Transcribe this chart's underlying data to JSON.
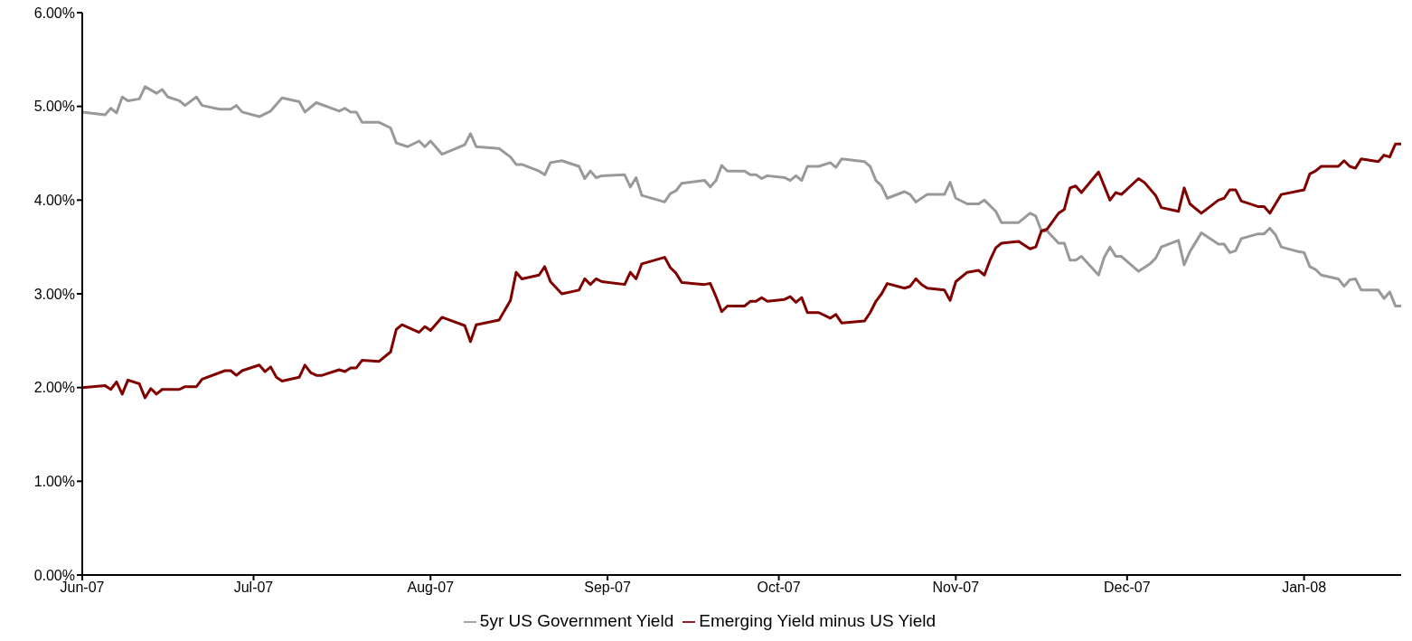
{
  "chart_data": {
    "type": "line",
    "xlim": [
      "2007-06-01",
      "2008-01-18"
    ],
    "xticks": [
      {
        "value": "2007-06-01",
        "label": "Jun-07"
      },
      {
        "value": "2007-07-01",
        "label": "Jul-07"
      },
      {
        "value": "2007-08-01",
        "label": "Aug-07"
      },
      {
        "value": "2007-09-01",
        "label": "Sep-07"
      },
      {
        "value": "2007-10-01",
        "label": "Oct-07"
      },
      {
        "value": "2007-11-01",
        "label": "Nov-07"
      },
      {
        "value": "2007-12-01",
        "label": "Dec-07"
      },
      {
        "value": "2008-01-01",
        "label": "Jan-08"
      }
    ],
    "ylim": [
      0,
      6
    ],
    "yticks": [
      {
        "value": 0,
        "label": "0.00%"
      },
      {
        "value": 1,
        "label": "1.00%"
      },
      {
        "value": 2,
        "label": "2.00%"
      },
      {
        "value": 3,
        "label": "3.00%"
      },
      {
        "value": 4,
        "label": "4.00%"
      },
      {
        "value": 5,
        "label": "5.00%"
      },
      {
        "value": 6,
        "label": "6.00%"
      }
    ],
    "grid": false,
    "legend": "bottom",
    "marker": "none",
    "line_style": "solid",
    "series": [
      {
        "name": "5yr US Government Yield",
        "color": "#999999",
        "x": [
          "2007-06-01",
          "2007-06-05",
          "2007-06-06",
          "2007-06-07",
          "2007-06-08",
          "2007-06-09",
          "2007-06-11",
          "2007-06-12",
          "2007-06-14",
          "2007-06-15",
          "2007-06-16",
          "2007-06-18",
          "2007-06-19",
          "2007-06-21",
          "2007-06-22",
          "2007-06-25",
          "2007-06-27",
          "2007-06-28",
          "2007-06-29",
          "2007-07-02",
          "2007-07-04",
          "2007-07-06",
          "2007-07-09",
          "2007-07-10",
          "2007-07-12",
          "2007-07-16",
          "2007-07-17",
          "2007-07-18",
          "2007-07-19",
          "2007-07-20",
          "2007-07-23",
          "2007-07-25",
          "2007-07-26",
          "2007-07-28",
          "2007-07-30",
          "2007-07-31",
          "2007-08-01",
          "2007-08-03",
          "2007-08-07",
          "2007-08-08",
          "2007-08-09",
          "2007-08-13",
          "2007-08-15",
          "2007-08-16",
          "2007-08-17",
          "2007-08-20",
          "2007-08-21",
          "2007-08-22",
          "2007-08-24",
          "2007-08-27",
          "2007-08-28",
          "2007-08-29",
          "2007-08-30",
          "2007-08-31",
          "2007-09-04",
          "2007-09-05",
          "2007-09-06",
          "2007-09-07",
          "2007-09-11",
          "2007-09-12",
          "2007-09-13",
          "2007-09-14",
          "2007-09-18",
          "2007-09-19",
          "2007-09-20",
          "2007-09-21",
          "2007-09-22",
          "2007-09-25",
          "2007-09-26",
          "2007-09-27",
          "2007-09-28",
          "2007-09-29",
          "2007-10-02",
          "2007-10-03",
          "2007-10-04",
          "2007-10-05",
          "2007-10-06",
          "2007-10-08",
          "2007-10-10",
          "2007-10-11",
          "2007-10-12",
          "2007-10-16",
          "2007-10-17",
          "2007-10-18",
          "2007-10-19",
          "2007-10-20",
          "2007-10-23",
          "2007-10-24",
          "2007-10-25",
          "2007-10-27",
          "2007-10-30",
          "2007-10-31",
          "2007-11-01",
          "2007-11-03",
          "2007-11-05",
          "2007-11-06",
          "2007-11-08",
          "2007-11-09",
          "2007-11-12",
          "2007-11-14",
          "2007-11-15",
          "2007-11-16",
          "2007-11-17",
          "2007-11-19",
          "2007-11-20",
          "2007-11-21",
          "2007-11-22",
          "2007-11-23",
          "2007-11-26",
          "2007-11-27",
          "2007-11-28",
          "2007-11-29",
          "2007-11-30",
          "2007-12-03",
          "2007-12-04",
          "2007-12-05",
          "2007-12-06",
          "2007-12-07",
          "2007-12-10",
          "2007-12-11",
          "2007-12-12",
          "2007-12-14",
          "2007-12-17",
          "2007-12-18",
          "2007-12-19",
          "2007-12-20",
          "2007-12-21",
          "2007-12-24",
          "2007-12-25",
          "2007-12-26",
          "2007-12-27",
          "2007-12-28",
          "2007-12-31",
          "2008-01-01",
          "2008-01-02",
          "2008-01-03",
          "2008-01-04",
          "2008-01-07",
          "2008-01-08",
          "2008-01-09",
          "2008-01-10",
          "2008-01-11",
          "2008-01-14",
          "2008-01-15",
          "2008-01-16",
          "2008-01-17",
          "2008-01-18"
        ],
        "values": [
          4.94,
          4.91,
          4.98,
          4.93,
          5.1,
          5.06,
          5.08,
          5.21,
          5.14,
          5.18,
          5.1,
          5.06,
          5.01,
          5.1,
          5.01,
          4.97,
          4.97,
          5.01,
          4.94,
          4.89,
          4.95,
          5.09,
          5.05,
          4.94,
          5.04,
          4.95,
          4.98,
          4.94,
          4.94,
          4.83,
          4.83,
          4.77,
          4.61,
          4.57,
          4.63,
          4.57,
          4.63,
          4.49,
          4.59,
          4.71,
          4.57,
          4.55,
          4.46,
          4.38,
          4.38,
          4.31,
          4.27,
          4.4,
          4.42,
          4.36,
          4.23,
          4.31,
          4.24,
          4.26,
          4.27,
          4.14,
          4.24,
          4.05,
          3.98,
          4.07,
          4.1,
          4.18,
          4.21,
          4.14,
          4.21,
          4.37,
          4.31,
          4.31,
          4.27,
          4.27,
          4.23,
          4.26,
          4.24,
          4.21,
          4.26,
          4.21,
          4.36,
          4.36,
          4.4,
          4.35,
          4.44,
          4.41,
          4.36,
          4.21,
          4.15,
          4.02,
          4.09,
          4.06,
          3.98,
          4.06,
          4.06,
          4.19,
          4.02,
          3.96,
          3.96,
          4.0,
          3.88,
          3.76,
          3.76,
          3.86,
          3.83,
          3.67,
          3.67,
          3.54,
          3.54,
          3.36,
          3.36,
          3.4,
          3.2,
          3.39,
          3.5,
          3.4,
          3.4,
          3.24,
          3.28,
          3.32,
          3.38,
          3.5,
          3.57,
          3.31,
          3.45,
          3.65,
          3.53,
          3.53,
          3.44,
          3.46,
          3.59,
          3.64,
          3.64,
          3.7,
          3.63,
          3.5,
          3.45,
          3.44,
          3.29,
          3.26,
          3.2,
          3.16,
          3.08,
          3.15,
          3.16,
          3.04,
          3.04,
          2.95,
          3.02,
          2.87,
          2.87
        ]
      },
      {
        "name": "Emerging Yield minus US Yield",
        "color": "#800000",
        "x": [
          "2007-06-01",
          "2007-06-05",
          "2007-06-06",
          "2007-06-07",
          "2007-06-08",
          "2007-06-09",
          "2007-06-11",
          "2007-06-12",
          "2007-06-13",
          "2007-06-14",
          "2007-06-15",
          "2007-06-18",
          "2007-06-19",
          "2007-06-21",
          "2007-06-22",
          "2007-06-26",
          "2007-06-27",
          "2007-06-28",
          "2007-06-29",
          "2007-07-02",
          "2007-07-03",
          "2007-07-04",
          "2007-07-05",
          "2007-07-06",
          "2007-07-09",
          "2007-07-10",
          "2007-07-11",
          "2007-07-12",
          "2007-07-13",
          "2007-07-16",
          "2007-07-17",
          "2007-07-18",
          "2007-07-19",
          "2007-07-20",
          "2007-07-23",
          "2007-07-25",
          "2007-07-26",
          "2007-07-27",
          "2007-07-30",
          "2007-07-31",
          "2007-08-01",
          "2007-08-03",
          "2007-08-07",
          "2007-08-08",
          "2007-08-09",
          "2007-08-13",
          "2007-08-15",
          "2007-08-16",
          "2007-08-17",
          "2007-08-20",
          "2007-08-21",
          "2007-08-22",
          "2007-08-24",
          "2007-08-27",
          "2007-08-28",
          "2007-08-29",
          "2007-08-30",
          "2007-08-31",
          "2007-09-04",
          "2007-09-05",
          "2007-09-06",
          "2007-09-07",
          "2007-09-11",
          "2007-09-12",
          "2007-09-13",
          "2007-09-14",
          "2007-09-18",
          "2007-09-19",
          "2007-09-20",
          "2007-09-21",
          "2007-09-22",
          "2007-09-25",
          "2007-09-26",
          "2007-09-27",
          "2007-09-28",
          "2007-09-29",
          "2007-10-02",
          "2007-10-03",
          "2007-10-04",
          "2007-10-05",
          "2007-10-06",
          "2007-10-08",
          "2007-10-10",
          "2007-10-11",
          "2007-10-12",
          "2007-10-16",
          "2007-10-17",
          "2007-10-18",
          "2007-10-19",
          "2007-10-20",
          "2007-10-23",
          "2007-10-24",
          "2007-10-25",
          "2007-10-26",
          "2007-10-27",
          "2007-10-30",
          "2007-10-31",
          "2007-11-01",
          "2007-11-03",
          "2007-11-05",
          "2007-11-06",
          "2007-11-07",
          "2007-11-08",
          "2007-11-09",
          "2007-11-12",
          "2007-11-14",
          "2007-11-15",
          "2007-11-16",
          "2007-11-17",
          "2007-11-19",
          "2007-11-20",
          "2007-11-21",
          "2007-11-22",
          "2007-11-23",
          "2007-11-26",
          "2007-11-28",
          "2007-11-29",
          "2007-11-30",
          "2007-12-03",
          "2007-12-04",
          "2007-12-06",
          "2007-12-07",
          "2007-12-10",
          "2007-12-11",
          "2007-12-12",
          "2007-12-14",
          "2007-12-17",
          "2007-12-18",
          "2007-12-19",
          "2007-12-20",
          "2007-12-21",
          "2007-12-24",
          "2007-12-25",
          "2007-12-26",
          "2007-12-27",
          "2007-12-28",
          "2008-01-01",
          "2008-01-02",
          "2008-01-03",
          "2008-01-04",
          "2008-01-07",
          "2008-01-08",
          "2008-01-09",
          "2008-01-10",
          "2008-01-11",
          "2008-01-14",
          "2008-01-15",
          "2008-01-16",
          "2008-01-17",
          "2008-01-18"
        ],
        "values": [
          2.0,
          2.02,
          1.98,
          2.06,
          1.93,
          2.08,
          2.04,
          1.89,
          1.99,
          1.93,
          1.98,
          1.98,
          2.01,
          2.01,
          2.09,
          2.18,
          2.18,
          2.13,
          2.18,
          2.24,
          2.17,
          2.22,
          2.11,
          2.07,
          2.11,
          2.24,
          2.16,
          2.13,
          2.13,
          2.19,
          2.17,
          2.21,
          2.21,
          2.29,
          2.28,
          2.38,
          2.62,
          2.67,
          2.59,
          2.65,
          2.61,
          2.75,
          2.66,
          2.49,
          2.67,
          2.72,
          2.93,
          3.23,
          3.16,
          3.2,
          3.29,
          3.13,
          3.0,
          3.04,
          3.16,
          3.1,
          3.16,
          3.13,
          3.1,
          3.23,
          3.16,
          3.32,
          3.39,
          3.28,
          3.22,
          3.12,
          3.1,
          3.11,
          2.97,
          2.81,
          2.87,
          2.87,
          2.92,
          2.92,
          2.96,
          2.92,
          2.94,
          2.97,
          2.91,
          2.96,
          2.8,
          2.8,
          2.74,
          2.78,
          2.69,
          2.71,
          2.8,
          2.92,
          3.0,
          3.11,
          3.06,
          3.08,
          3.16,
          3.1,
          3.06,
          3.04,
          2.93,
          3.13,
          3.23,
          3.25,
          3.2,
          3.36,
          3.49,
          3.54,
          3.56,
          3.48,
          3.5,
          3.67,
          3.69,
          3.86,
          3.9,
          4.13,
          4.15,
          4.08,
          4.3,
          4.0,
          4.08,
          4.06,
          4.23,
          4.19,
          4.05,
          3.92,
          3.88,
          4.13,
          3.96,
          3.86,
          4.0,
          4.02,
          4.11,
          4.11,
          3.99,
          3.93,
          3.93,
          3.86,
          3.96,
          4.06,
          4.11,
          4.28,
          4.31,
          4.36,
          4.36,
          4.42,
          4.36,
          4.34,
          4.44,
          4.41,
          4.48,
          4.46,
          4.6,
          4.6
        ]
      }
    ]
  }
}
